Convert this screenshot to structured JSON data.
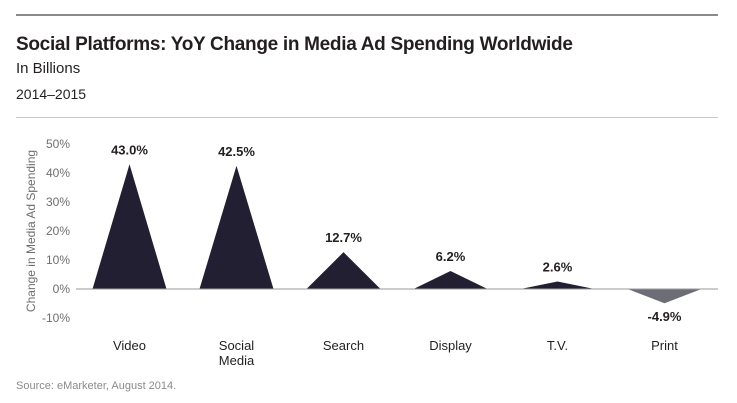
{
  "header": {
    "title": "Social Platforms: YoY Change in Media Ad Spending Worldwide",
    "subtitle": "In Billions",
    "date_range": "2014–2015"
  },
  "footer": {
    "source": "Source: eMarketer, August 2014."
  },
  "colors": {
    "positive": "#231f33",
    "negative": "#6d6d78",
    "axis": "#9a9a9a"
  },
  "chart_data": {
    "type": "area",
    "title": "Social Platforms: YoY Change in Media Ad Spending Worldwide",
    "subtitle": "In Billions",
    "xlabel": "",
    "ylabel": "Change in Media Ad Spending",
    "ylim": [
      -10,
      50
    ],
    "yticks": [
      "50%",
      "40%",
      "30%",
      "20%",
      "10%",
      "0%",
      "-10%"
    ],
    "ytick_values": [
      50,
      40,
      30,
      20,
      10,
      0,
      -10
    ],
    "categories": [
      [
        "Video"
      ],
      [
        "Social",
        "Media"
      ],
      [
        "Search"
      ],
      [
        "Display"
      ],
      [
        "T.V."
      ],
      [
        "Print"
      ]
    ],
    "values": [
      43.0,
      42.5,
      12.7,
      6.2,
      2.6,
      -4.9
    ],
    "data_labels": [
      "43.0%",
      "42.5%",
      "12.7%",
      "6.2%",
      "2.6%",
      "-4.9%"
    ],
    "grid": false,
    "legend": "none"
  }
}
